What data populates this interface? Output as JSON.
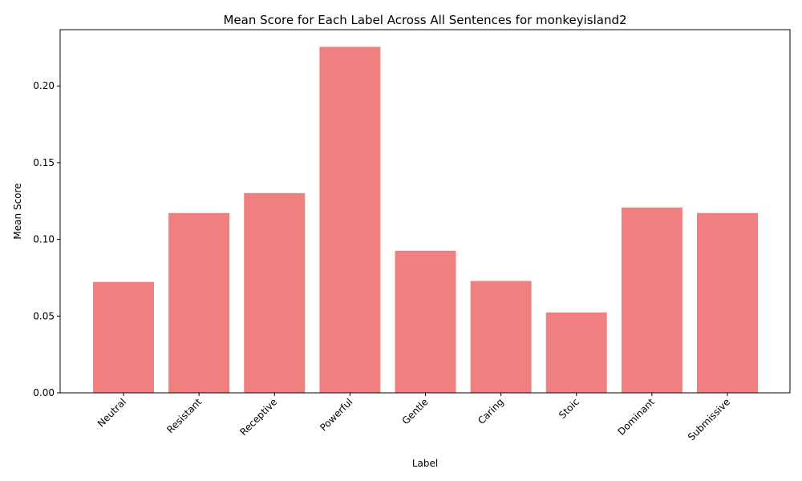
{
  "chart_data": {
    "type": "bar",
    "title": "Mean Score for Each Label Across All Sentences for monkeyisland2",
    "xlabel": "Label",
    "ylabel": "Mean Score",
    "categories": [
      "Neutral",
      "Resistant",
      "Receptive",
      "Powerful",
      "Gentle",
      "Caring",
      "Stoic",
      "Dominant",
      "Submissive"
    ],
    "values": [
      0.0723,
      0.1172,
      0.1302,
      0.2255,
      0.0926,
      0.0729,
      0.0524,
      0.1208,
      0.1172
    ],
    "ylim": [
      0,
      0.2367
    ],
    "yticks": [
      0.0,
      0.05,
      0.1,
      0.15,
      0.2
    ],
    "ytick_labels": [
      "0.00",
      "0.05",
      "0.10",
      "0.15",
      "0.20"
    ],
    "bar_color": "#f08080",
    "grid": false,
    "legend": "none"
  }
}
